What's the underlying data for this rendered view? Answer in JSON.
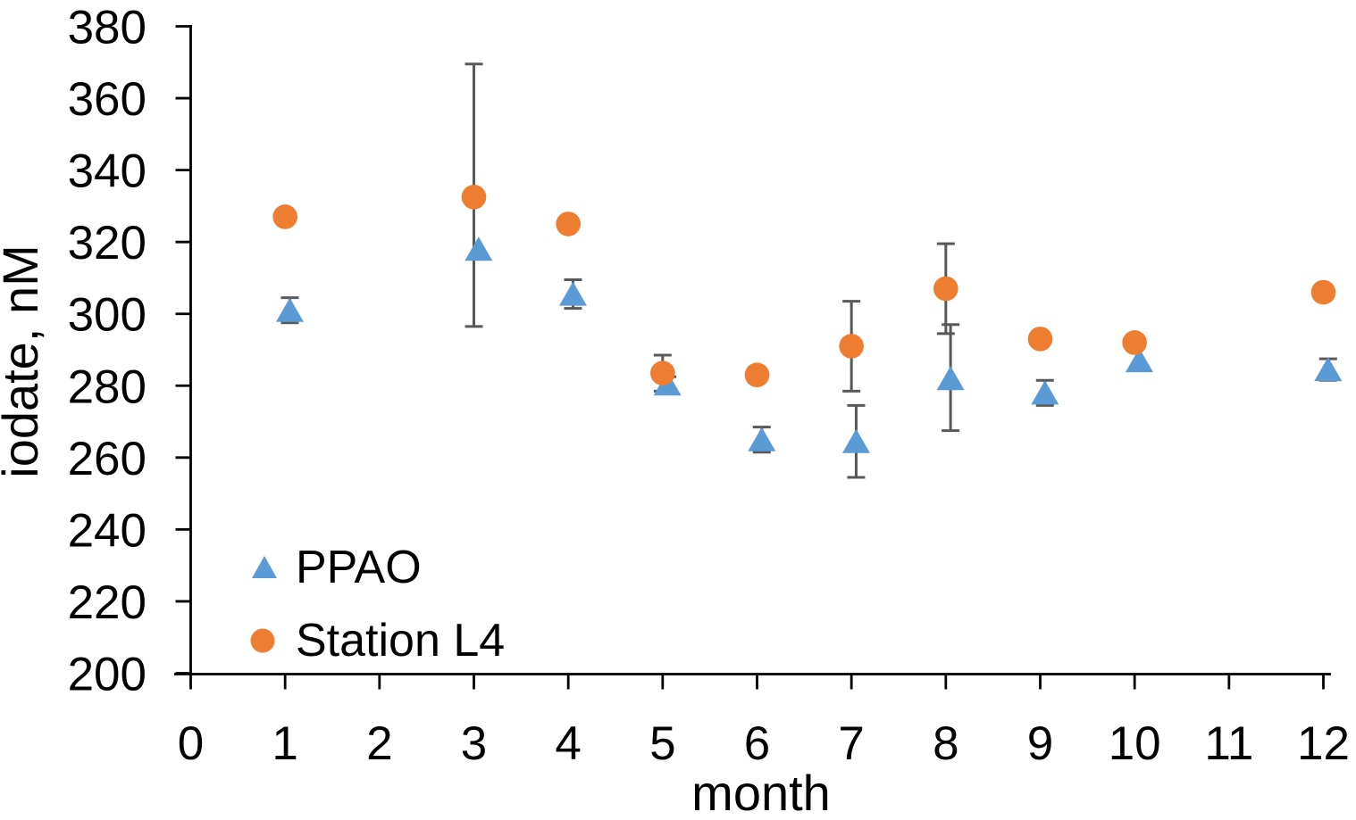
{
  "chart_data": {
    "type": "scatter",
    "title": "",
    "xlabel": "month",
    "ylabel": "iodate, nM",
    "xlim": [
      0,
      12
    ],
    "ylim": [
      200,
      380
    ],
    "x_ticks": [
      0,
      1,
      2,
      3,
      4,
      5,
      6,
      7,
      8,
      9,
      10,
      11,
      12
    ],
    "y_ticks": [
      200,
      220,
      240,
      260,
      280,
      300,
      320,
      340,
      360,
      380
    ],
    "grid": false,
    "legend_position": "inside-bottom-left",
    "error_bar_color": "#595959",
    "series": [
      {
        "name": "PPAO",
        "marker": "triangle",
        "color": "#5B9BD5",
        "x_offset": 0.05,
        "points": [
          {
            "x": 1,
            "y": 301,
            "err_plus": 3.5,
            "err_minus": 3.5
          },
          {
            "x": 3,
            "y": 318,
            "err_plus": 0,
            "err_minus": 0
          },
          {
            "x": 4,
            "y": 305.5,
            "err_plus": 4,
            "err_minus": 4
          },
          {
            "x": 5,
            "y": 280.5,
            "err_plus": 2,
            "err_minus": 2
          },
          {
            "x": 6,
            "y": 265,
            "err_plus": 3.5,
            "err_minus": 3.5
          },
          {
            "x": 7,
            "y": 264.5,
            "err_plus": 10,
            "err_minus": 10
          },
          {
            "x": 8,
            "y": 282,
            "err_plus": 15,
            "err_minus": 14.5
          },
          {
            "x": 9,
            "y": 278,
            "err_plus": 3.5,
            "err_minus": 3.5
          },
          {
            "x": 10,
            "y": 287,
            "err_plus": 0,
            "err_minus": 0
          },
          {
            "x": 12,
            "y": 284.5,
            "err_plus": 3,
            "err_minus": 3
          }
        ]
      },
      {
        "name": "Station L4",
        "marker": "circle",
        "color": "#ED7D31",
        "x_offset": 0,
        "points": [
          {
            "x": 1,
            "y": 327,
            "err_plus": 0,
            "err_minus": 0
          },
          {
            "x": 3,
            "y": 332.5,
            "err_plus": 37,
            "err_minus": 36
          },
          {
            "x": 4,
            "y": 325,
            "err_plus": 0,
            "err_minus": 0
          },
          {
            "x": 5,
            "y": 283.5,
            "err_plus": 5,
            "err_minus": 5
          },
          {
            "x": 6,
            "y": 283,
            "err_plus": 0,
            "err_minus": 0
          },
          {
            "x": 7,
            "y": 291,
            "err_plus": 12.5,
            "err_minus": 12.5
          },
          {
            "x": 8,
            "y": 307,
            "err_plus": 12.5,
            "err_minus": 12.5
          },
          {
            "x": 9,
            "y": 293,
            "err_plus": 0,
            "err_minus": 0
          },
          {
            "x": 10,
            "y": 292,
            "err_plus": 0,
            "err_minus": 0
          },
          {
            "x": 12,
            "y": 306,
            "err_plus": 0,
            "err_minus": 0
          }
        ]
      }
    ]
  }
}
